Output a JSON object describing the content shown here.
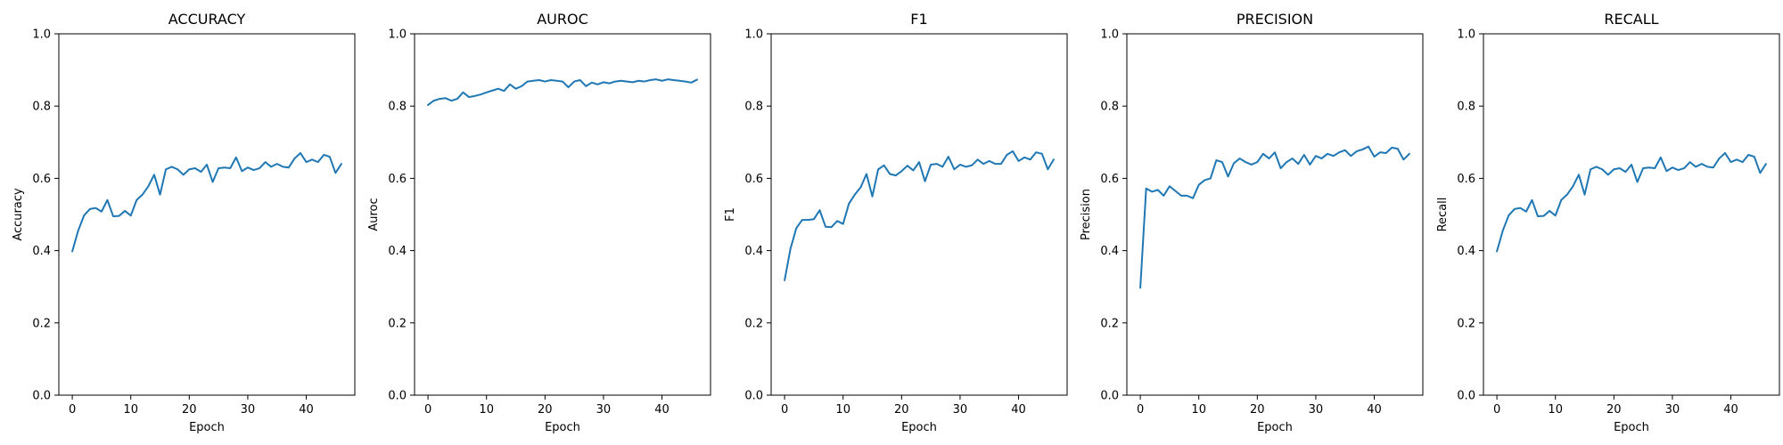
{
  "chart_data": [
    {
      "type": "line",
      "title": "ACCURACY",
      "xlabel": "Epoch",
      "ylabel": "Accuracy",
      "xlim": [
        -2.3,
        48.3
      ],
      "ylim": [
        0.0,
        1.0
      ],
      "xticks": [
        "0",
        "10",
        "20",
        "30",
        "40"
      ],
      "yticks": [
        "0.0",
        "0.2",
        "0.4",
        "0.6",
        "0.8",
        "1.0"
      ],
      "color": "#1f77b4",
      "series": [
        {
          "x": [
            0,
            1,
            2,
            3,
            4,
            5,
            6,
            7,
            8,
            9,
            10,
            11,
            12,
            13,
            14,
            15,
            16,
            17,
            18,
            19,
            20,
            21,
            22,
            23,
            24,
            25,
            26,
            27,
            28,
            29,
            30,
            31,
            32,
            33,
            34,
            35,
            36,
            37,
            38,
            39,
            40,
            41,
            42,
            43,
            44,
            45,
            46
          ],
          "values": [
            0.398,
            0.455,
            0.497,
            0.515,
            0.518,
            0.508,
            0.54,
            0.495,
            0.496,
            0.51,
            0.497,
            0.54,
            0.555,
            0.578,
            0.61,
            0.555,
            0.625,
            0.632,
            0.625,
            0.61,
            0.625,
            0.628,
            0.618,
            0.638,
            0.59,
            0.628,
            0.63,
            0.628,
            0.658,
            0.62,
            0.63,
            0.623,
            0.628,
            0.645,
            0.632,
            0.64,
            0.632,
            0.63,
            0.655,
            0.67,
            0.645,
            0.652,
            0.645,
            0.665,
            0.66,
            0.615,
            0.64
          ]
        }
      ]
    },
    {
      "type": "line",
      "title": "AUROC",
      "xlabel": "Epoch",
      "ylabel": "Auroc",
      "xlim": [
        -2.3,
        48.3
      ],
      "ylim": [
        0.0,
        1.0
      ],
      "xticks": [
        "0",
        "10",
        "20",
        "30",
        "40"
      ],
      "yticks": [
        "0.0",
        "0.2",
        "0.4",
        "0.6",
        "0.8",
        "1.0"
      ],
      "color": "#1f77b4",
      "series": [
        {
          "x": [
            0,
            1,
            2,
            3,
            4,
            5,
            6,
            7,
            8,
            9,
            10,
            11,
            12,
            13,
            14,
            15,
            16,
            17,
            18,
            19,
            20,
            21,
            22,
            23,
            24,
            25,
            26,
            27,
            28,
            29,
            30,
            31,
            32,
            33,
            34,
            35,
            36,
            37,
            38,
            39,
            40,
            41,
            42,
            43,
            44,
            45,
            46
          ],
          "values": [
            0.803,
            0.815,
            0.82,
            0.822,
            0.815,
            0.82,
            0.838,
            0.825,
            0.828,
            0.832,
            0.838,
            0.843,
            0.848,
            0.842,
            0.86,
            0.848,
            0.855,
            0.868,
            0.87,
            0.872,
            0.868,
            0.872,
            0.87,
            0.868,
            0.852,
            0.868,
            0.872,
            0.855,
            0.865,
            0.86,
            0.866,
            0.863,
            0.868,
            0.87,
            0.868,
            0.866,
            0.87,
            0.868,
            0.872,
            0.874,
            0.87,
            0.874,
            0.872,
            0.87,
            0.868,
            0.865,
            0.873
          ]
        }
      ]
    },
    {
      "type": "line",
      "title": "F1",
      "xlabel": "Epoch",
      "ylabel": "F1",
      "xlim": [
        -2.3,
        48.3
      ],
      "ylim": [
        0.0,
        1.0
      ],
      "xticks": [
        "0",
        "10",
        "20",
        "30",
        "40"
      ],
      "yticks": [
        "0.0",
        "0.2",
        "0.4",
        "0.6",
        "0.8",
        "1.0"
      ],
      "color": "#1f77b4",
      "series": [
        {
          "x": [
            0,
            1,
            2,
            3,
            4,
            5,
            6,
            7,
            8,
            9,
            10,
            11,
            12,
            13,
            14,
            15,
            16,
            17,
            18,
            19,
            20,
            21,
            22,
            23,
            24,
            25,
            26,
            27,
            28,
            29,
            30,
            31,
            32,
            33,
            34,
            35,
            36,
            37,
            38,
            39,
            40,
            41,
            42,
            43,
            44,
            45,
            46
          ],
          "values": [
            0.318,
            0.405,
            0.462,
            0.485,
            0.485,
            0.487,
            0.512,
            0.466,
            0.465,
            0.482,
            0.474,
            0.53,
            0.555,
            0.575,
            0.612,
            0.55,
            0.625,
            0.636,
            0.612,
            0.608,
            0.62,
            0.635,
            0.622,
            0.645,
            0.592,
            0.638,
            0.64,
            0.632,
            0.66,
            0.625,
            0.638,
            0.632,
            0.636,
            0.652,
            0.64,
            0.648,
            0.64,
            0.64,
            0.665,
            0.675,
            0.648,
            0.658,
            0.652,
            0.672,
            0.668,
            0.625,
            0.652
          ]
        }
      ]
    },
    {
      "type": "line",
      "title": "PRECISION",
      "xlabel": "Epoch",
      "ylabel": "Precision",
      "xlim": [
        -2.3,
        48.3
      ],
      "ylim": [
        0.0,
        1.0
      ],
      "xticks": [
        "0",
        "10",
        "20",
        "30",
        "40"
      ],
      "yticks": [
        "0.0",
        "0.2",
        "0.4",
        "0.6",
        "0.8",
        "1.0"
      ],
      "color": "#1f77b4",
      "series": [
        {
          "x": [
            0,
            1,
            2,
            3,
            4,
            5,
            6,
            7,
            8,
            9,
            10,
            11,
            12,
            13,
            14,
            15,
            16,
            17,
            18,
            19,
            20,
            21,
            22,
            23,
            24,
            25,
            26,
            27,
            28,
            29,
            30,
            31,
            32,
            33,
            34,
            35,
            36,
            37,
            38,
            39,
            40,
            41,
            42,
            43,
            44,
            45,
            46
          ],
          "values": [
            0.297,
            0.572,
            0.563,
            0.568,
            0.552,
            0.578,
            0.565,
            0.552,
            0.552,
            0.545,
            0.582,
            0.595,
            0.6,
            0.65,
            0.645,
            0.605,
            0.642,
            0.655,
            0.645,
            0.638,
            0.645,
            0.668,
            0.655,
            0.672,
            0.628,
            0.645,
            0.655,
            0.64,
            0.665,
            0.638,
            0.662,
            0.655,
            0.668,
            0.662,
            0.672,
            0.678,
            0.662,
            0.675,
            0.68,
            0.688,
            0.66,
            0.672,
            0.67,
            0.685,
            0.682,
            0.652,
            0.668
          ]
        }
      ]
    },
    {
      "type": "line",
      "title": "RECALL",
      "xlabel": "Epoch",
      "ylabel": "Recall",
      "xlim": [
        -2.3,
        48.3
      ],
      "ylim": [
        0.0,
        1.0
      ],
      "xticks": [
        "0",
        "10",
        "20",
        "30",
        "40"
      ],
      "yticks": [
        "0.0",
        "0.2",
        "0.4",
        "0.6",
        "0.8",
        "1.0"
      ],
      "color": "#1f77b4",
      "series": [
        {
          "x": [
            0,
            1,
            2,
            3,
            4,
            5,
            6,
            7,
            8,
            9,
            10,
            11,
            12,
            13,
            14,
            15,
            16,
            17,
            18,
            19,
            20,
            21,
            22,
            23,
            24,
            25,
            26,
            27,
            28,
            29,
            30,
            31,
            32,
            33,
            34,
            35,
            36,
            37,
            38,
            39,
            40,
            41,
            42,
            43,
            44,
            45,
            46
          ],
          "values": [
            0.398,
            0.455,
            0.497,
            0.515,
            0.518,
            0.508,
            0.54,
            0.495,
            0.496,
            0.51,
            0.497,
            0.54,
            0.555,
            0.578,
            0.61,
            0.555,
            0.625,
            0.632,
            0.625,
            0.61,
            0.625,
            0.628,
            0.618,
            0.638,
            0.59,
            0.628,
            0.63,
            0.628,
            0.658,
            0.62,
            0.63,
            0.623,
            0.628,
            0.645,
            0.632,
            0.64,
            0.632,
            0.63,
            0.655,
            0.67,
            0.645,
            0.652,
            0.645,
            0.665,
            0.66,
            0.615,
            0.64
          ]
        }
      ]
    }
  ]
}
